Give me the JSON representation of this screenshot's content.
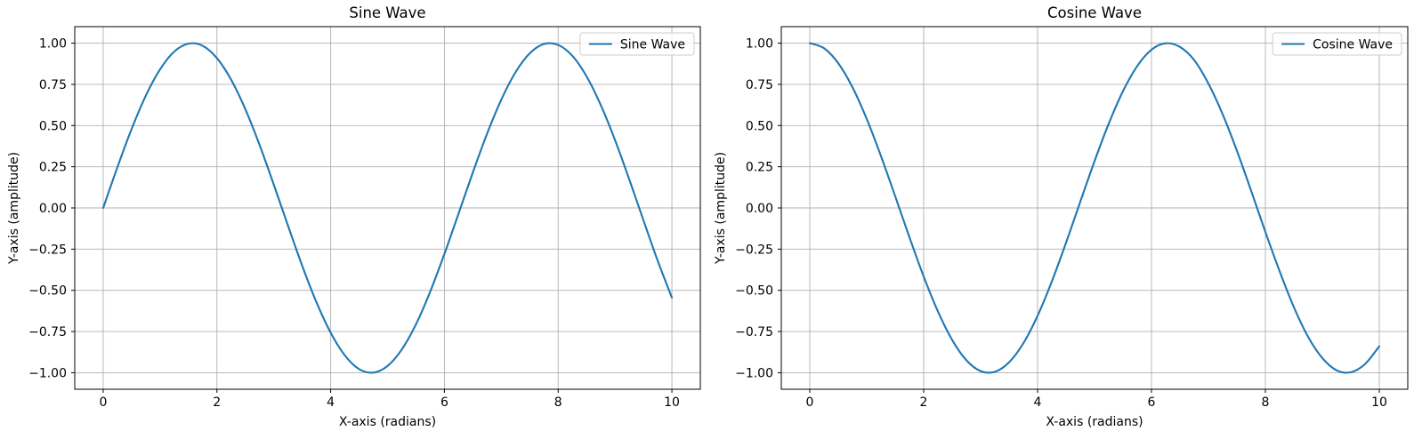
{
  "figure": {
    "background": "#ffffff",
    "text_color": "#000000",
    "grid_color": "#b0b0b0",
    "spine_color": "#000000",
    "legend_edge_color": "#cccccc",
    "legend_face_color": "#ffffff"
  },
  "chart_data": [
    {
      "type": "line",
      "title": "Sine Wave",
      "xlabel": "X-axis (radians)",
      "ylabel": "Y-axis (amplitude)",
      "grid": true,
      "legend": {
        "position": "upper right",
        "entries": [
          "Sine Wave"
        ]
      },
      "xlim": [
        -0.5,
        10.5
      ],
      "ylim": [
        -1.1,
        1.1
      ],
      "xticks": [
        0,
        2,
        4,
        6,
        8,
        10
      ],
      "yticks": [
        -1.0,
        -0.75,
        -0.5,
        -0.25,
        0.0,
        0.25,
        0.5,
        0.75,
        1.0
      ],
      "xtick_decimals": 0,
      "ytick_decimals": 2,
      "series": [
        {
          "name": "Sine Wave",
          "color": "#1f77b4",
          "line_width": 2.1,
          "x": [
            0,
            0.25,
            0.5,
            0.75,
            1,
            1.25,
            1.5,
            1.75,
            2,
            2.25,
            2.5,
            2.75,
            3,
            3.25,
            3.5,
            3.75,
            4,
            4.25,
            4.5,
            4.75,
            5,
            5.25,
            5.5,
            5.75,
            6,
            6.25,
            6.5,
            6.75,
            7,
            7.25,
            7.5,
            7.75,
            8,
            8.25,
            8.5,
            8.75,
            9,
            9.25,
            9.5,
            9.75,
            10
          ],
          "y": [
            0,
            0.247,
            0.479,
            0.682,
            0.841,
            0.949,
            0.997,
            0.984,
            0.909,
            0.778,
            0.599,
            0.382,
            0.141,
            -0.108,
            -0.351,
            -0.572,
            -0.757,
            -0.895,
            -0.978,
            -0.999,
            -0.959,
            -0.859,
            -0.706,
            -0.508,
            -0.279,
            -0.033,
            0.215,
            0.45,
            0.657,
            0.823,
            0.938,
            0.995,
            0.989,
            0.923,
            0.798,
            0.624,
            0.412,
            0.174,
            -0.075,
            -0.32,
            -0.544
          ]
        }
      ]
    },
    {
      "type": "line",
      "title": "Cosine Wave",
      "xlabel": "X-axis (radians)",
      "ylabel": "Y-axis (amplitude)",
      "grid": true,
      "legend": {
        "position": "upper right",
        "entries": [
          "Cosine Wave"
        ]
      },
      "xlim": [
        -0.5,
        10.5
      ],
      "ylim": [
        -1.1,
        1.1
      ],
      "xticks": [
        0,
        2,
        4,
        6,
        8,
        10
      ],
      "yticks": [
        -1.0,
        -0.75,
        -0.5,
        -0.25,
        0.0,
        0.25,
        0.5,
        0.75,
        1.0
      ],
      "xtick_decimals": 0,
      "ytick_decimals": 2,
      "series": [
        {
          "name": "Cosine Wave",
          "color": "#1f77b4",
          "line_width": 2.1,
          "x": [
            0,
            0.25,
            0.5,
            0.75,
            1,
            1.25,
            1.5,
            1.75,
            2,
            2.25,
            2.5,
            2.75,
            3,
            3.25,
            3.5,
            3.75,
            4,
            4.25,
            4.5,
            4.75,
            5,
            5.25,
            5.5,
            5.75,
            6,
            6.25,
            6.5,
            6.75,
            7,
            7.25,
            7.5,
            7.75,
            8,
            8.25,
            8.5,
            8.75,
            9,
            9.25,
            9.5,
            9.75,
            10
          ],
          "y": [
            1,
            0.969,
            0.878,
            0.732,
            0.54,
            0.315,
            0.071,
            -0.178,
            -0.416,
            -0.628,
            -0.801,
            -0.924,
            -0.99,
            -0.994,
            -0.936,
            -0.821,
            -0.654,
            -0.446,
            -0.211,
            0.038,
            0.284,
            0.512,
            0.709,
            0.861,
            0.96,
            0.999,
            0.977,
            0.897,
            0.754,
            0.568,
            0.347,
            0.104,
            -0.146,
            -0.384,
            -0.602,
            -0.782,
            -0.911,
            -0.985,
            -0.997,
            -0.947,
            -0.839
          ]
        }
      ]
    }
  ]
}
